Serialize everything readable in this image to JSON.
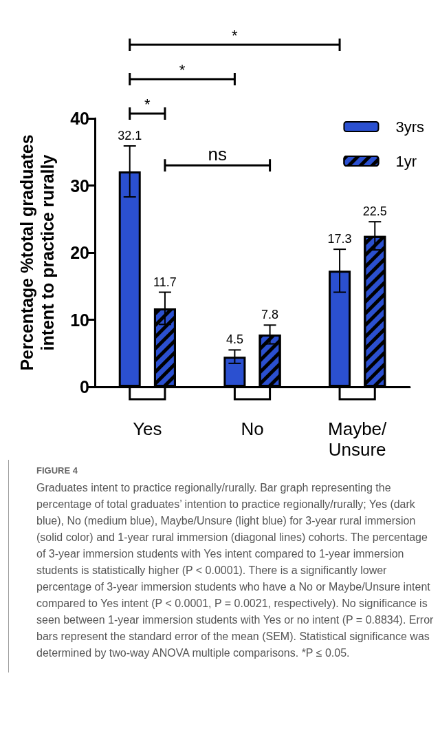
{
  "chart_data": {
    "type": "bar",
    "ylabel": "Percentage %total graduates\nintent to practice rurally",
    "categories": [
      "Yes",
      "No",
      "Maybe/Unsure"
    ],
    "series": [
      {
        "name": "3yrs",
        "color": "#2b50d0",
        "values": [
          32.1,
          4.5,
          17.3
        ],
        "errors": [
          3.8,
          1.0,
          3.2
        ]
      },
      {
        "name": "1yr",
        "color": "#2b50d0",
        "values": [
          11.7,
          7.8,
          22.5
        ],
        "errors": [
          2.4,
          1.4,
          2.1
        ]
      }
    ],
    "ylim": [
      0,
      40
    ],
    "yticks": [
      0,
      10,
      20,
      30,
      40
    ],
    "grid": false,
    "legend": "top right",
    "data_labels": true,
    "annotations": [
      "*",
      "*",
      "*",
      "ns",
      "FIGURE 4",
      "Graduates intent to practice regionally/rurally. Bar graph representing the percentage of total graduates’ intention to practice regionally/rurally; Yes (dark blue), No (medium blue), Maybe/Unsure (light blue) for 3-year rural immersion (solid color) and 1-year rural immersion (diagonal lines) cohorts. The percentage of 3-year immersion students with Yes intent compared to 1-year immersion students is statistically higher (P < 0.0001). There is a significantly lower percentage of 3-year immersion students who have a No or Maybe/Unsure intent compared to Yes intent (P < 0.0001, P = 0.0021, respectively). No significance is seen between 1-year immersion students with Yes or no intent (P = 0.8834). Error bars represent the standard error of the mean (SEM). Statistical significance was determined by two-way ANOVA multiple comparisons. *P ≤ 0.05."
    ]
  }
}
